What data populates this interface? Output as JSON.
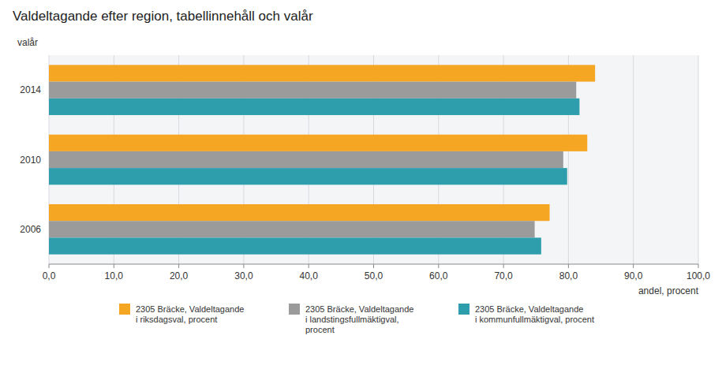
{
  "chart_data": {
    "type": "bar",
    "orientation": "horizontal",
    "title": "Valdeltagande efter region, tabellinnehåll och valår",
    "xlabel": "andel, procent",
    "ylabel": "valår",
    "categories": [
      "2006",
      "2010",
      "2014"
    ],
    "series": [
      {
        "name": "2305 Bräcke, Valdeltagande\ni riksdagsval, procent",
        "color": "#F5A623",
        "values": [
          77.1,
          82.9,
          84.1
        ]
      },
      {
        "name": "2305 Bräcke, Valdeltagande\ni landstingsfullmäktigval,\nprocent",
        "color": "#9B9B9B",
        "values": [
          74.8,
          79.2,
          81.2
        ]
      },
      {
        "name": "2305 Bräcke, Valdeltagande\ni kommunfullmäktigval, procent",
        "color": "#2E9EAD",
        "values": [
          75.8,
          79.8,
          81.7
        ]
      }
    ],
    "xlim": [
      0,
      100
    ],
    "xticks": [
      {
        "value": 0,
        "label": "0,0"
      },
      {
        "value": 10,
        "label": "10,0"
      },
      {
        "value": 20,
        "label": "20,0"
      },
      {
        "value": 30,
        "label": "30,0"
      },
      {
        "value": 40,
        "label": "40,0"
      },
      {
        "value": 50,
        "label": "50,0"
      },
      {
        "value": 60,
        "label": "60,0"
      },
      {
        "value": 70,
        "label": "70,0"
      },
      {
        "value": 80,
        "label": "80,0"
      },
      {
        "value": 90,
        "label": "90,0"
      },
      {
        "value": 100,
        "label": "100,0"
      }
    ],
    "grid": true,
    "legend": "bottom"
  }
}
